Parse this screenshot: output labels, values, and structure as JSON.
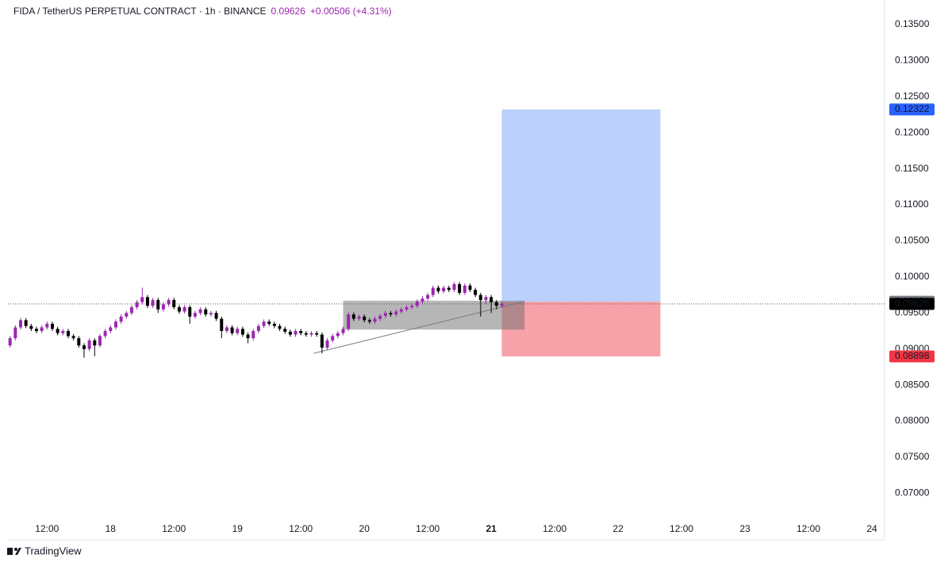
{
  "chart_data": {
    "type": "candlestick",
    "title": "FIDA / TetherUS PERPETUAL CONTRACT · 1h · BINANCE",
    "last_price": 0.09626,
    "change": "+0.00506 (+4.31%)",
    "footer": "TradingView",
    "up_color": "#9c27b0",
    "down_color": "#000000",
    "grid": false,
    "x": [
      5,
      6,
      7,
      8,
      9,
      10,
      11,
      12,
      13,
      14,
      15,
      16,
      17,
      18,
      19,
      20,
      21,
      22,
      23,
      24,
      25,
      26,
      27,
      28,
      29,
      30,
      31,
      32,
      33,
      34,
      35,
      36,
      37,
      38,
      39,
      40,
      41,
      42,
      43,
      44,
      45,
      46,
      47,
      48,
      49,
      50,
      51,
      52,
      53,
      54,
      55,
      56,
      57,
      58,
      59,
      60,
      61,
      62,
      63,
      64,
      65,
      66,
      67,
      68,
      69,
      70,
      71,
      72,
      73,
      74,
      75,
      76,
      77,
      78,
      79,
      80,
      81,
      82,
      83,
      84,
      85,
      86,
      87,
      88,
      89,
      90,
      91,
      92,
      93,
      94,
      95,
      96,
      97,
      98
    ],
    "open": [
      0.0905,
      0.0915,
      0.093,
      0.094,
      0.0932,
      0.0928,
      0.0925,
      0.093,
      0.0935,
      0.0928,
      0.0922,
      0.0925,
      0.0918,
      0.0915,
      0.0905,
      0.09,
      0.0912,
      0.0905,
      0.0918,
      0.0925,
      0.093,
      0.0938,
      0.0945,
      0.095,
      0.0958,
      0.0965,
      0.0972,
      0.096,
      0.0968,
      0.0955,
      0.0962,
      0.0968,
      0.0958,
      0.0952,
      0.0958,
      0.0945,
      0.095,
      0.0955,
      0.0948,
      0.095,
      0.0942,
      0.0925,
      0.093,
      0.0922,
      0.0928,
      0.092,
      0.0915,
      0.0925,
      0.0932,
      0.0938,
      0.0935,
      0.0932,
      0.0928,
      0.0924,
      0.092,
      0.0925,
      0.0922,
      0.092,
      0.0922,
      0.092,
      0.0902,
      0.0912,
      0.0918,
      0.0922,
      0.0928,
      0.0948,
      0.0942,
      0.0945,
      0.094,
      0.0938,
      0.0942,
      0.0946,
      0.095,
      0.0948,
      0.0952,
      0.0955,
      0.0958,
      0.096,
      0.0966,
      0.097,
      0.0975,
      0.0985,
      0.098,
      0.0985,
      0.0982,
      0.099,
      0.0978,
      0.0988,
      0.0982,
      0.0975,
      0.0968,
      0.0972,
      0.0965,
      0.096
    ],
    "high": [
      0.0918,
      0.0933,
      0.0943,
      0.0943,
      0.0935,
      0.0931,
      0.0933,
      0.0938,
      0.0938,
      0.0931,
      0.0928,
      0.0928,
      0.0921,
      0.0918,
      0.0908,
      0.0915,
      0.0915,
      0.0921,
      0.0928,
      0.0933,
      0.0941,
      0.0948,
      0.0953,
      0.0961,
      0.0968,
      0.0985,
      0.0975,
      0.0971,
      0.0971,
      0.0965,
      0.0971,
      0.0971,
      0.0961,
      0.0961,
      0.0961,
      0.0953,
      0.0958,
      0.0958,
      0.0953,
      0.0953,
      0.0945,
      0.0933,
      0.0933,
      0.0931,
      0.0931,
      0.0923,
      0.0928,
      0.0935,
      0.0941,
      0.0941,
      0.0938,
      0.0935,
      0.0931,
      0.0927,
      0.0928,
      0.0928,
      0.0925,
      0.0925,
      0.0925,
      0.0923,
      0.0915,
      0.0921,
      0.0925,
      0.0931,
      0.0951,
      0.0951,
      0.0948,
      0.0948,
      0.0943,
      0.0945,
      0.0949,
      0.0953,
      0.0953,
      0.0955,
      0.0958,
      0.0961,
      0.0963,
      0.0969,
      0.0973,
      0.0978,
      0.0988,
      0.0988,
      0.0988,
      0.0988,
      0.0993,
      0.0993,
      0.0991,
      0.0991,
      0.0985,
      0.0978,
      0.0975,
      0.0975,
      0.0968,
      0.0966
    ],
    "low": [
      0.0902,
      0.0912,
      0.0927,
      0.0929,
      0.0925,
      0.0922,
      0.0922,
      0.0927,
      0.0925,
      0.0919,
      0.0919,
      0.0915,
      0.0912,
      0.0902,
      0.0888,
      0.0897,
      0.089,
      0.0902,
      0.0915,
      0.0922,
      0.0927,
      0.0935,
      0.0942,
      0.0947,
      0.0955,
      0.0962,
      0.0957,
      0.0957,
      0.095,
      0.0952,
      0.0959,
      0.0955,
      0.0949,
      0.0949,
      0.0935,
      0.0942,
      0.0947,
      0.0945,
      0.0945,
      0.0939,
      0.0915,
      0.0922,
      0.0919,
      0.0919,
      0.0917,
      0.0908,
      0.0912,
      0.0922,
      0.0929,
      0.0932,
      0.0929,
      0.0925,
      0.0921,
      0.0917,
      0.0917,
      0.0919,
      0.0917,
      0.0917,
      0.0917,
      0.0894,
      0.0899,
      0.0909,
      0.0915,
      0.0919,
      0.0925,
      0.0939,
      0.0939,
      0.0937,
      0.0935,
      0.0935,
      0.0939,
      0.0943,
      0.0945,
      0.0945,
      0.0949,
      0.0952,
      0.0955,
      0.0957,
      0.0963,
      0.0967,
      0.0972,
      0.0977,
      0.0977,
      0.0979,
      0.0979,
      0.0975,
      0.0975,
      0.0979,
      0.0972,
      0.0945,
      0.0962,
      0.095,
      0.0955,
      0.0957
    ],
    "close": [
      0.0915,
      0.093,
      0.094,
      0.0932,
      0.0928,
      0.0925,
      0.093,
      0.0935,
      0.0928,
      0.0922,
      0.0925,
      0.0918,
      0.0915,
      0.0905,
      0.09,
      0.0912,
      0.0905,
      0.0918,
      0.0925,
      0.093,
      0.0938,
      0.0945,
      0.095,
      0.0958,
      0.0965,
      0.0972,
      0.096,
      0.0968,
      0.0955,
      0.0962,
      0.0968,
      0.0958,
      0.0952,
      0.0958,
      0.0945,
      0.095,
      0.0955,
      0.0948,
      0.095,
      0.0942,
      0.0925,
      0.093,
      0.0922,
      0.0928,
      0.092,
      0.0915,
      0.0925,
      0.0932,
      0.0938,
      0.0935,
      0.0932,
      0.0928,
      0.0924,
      0.092,
      0.0925,
      0.0922,
      0.092,
      0.0922,
      0.092,
      0.0902,
      0.0912,
      0.0918,
      0.0922,
      0.0928,
      0.0948,
      0.0942,
      0.0945,
      0.094,
      0.0938,
      0.0942,
      0.0946,
      0.095,
      0.0948,
      0.0952,
      0.0955,
      0.0958,
      0.096,
      0.0966,
      0.097,
      0.0975,
      0.0985,
      0.098,
      0.0985,
      0.0982,
      0.099,
      0.0978,
      0.0988,
      0.0982,
      0.0975,
      0.0968,
      0.0972,
      0.0965,
      0.096,
      0.09626
    ],
    "xlim": [
      4.6,
      170.4
    ],
    "ylim": [
      0.0663,
      0.1384
    ],
    "xticks": [
      {
        "value": 12,
        "label": "12:00"
      },
      {
        "value": 24,
        "label": "18"
      },
      {
        "value": 36,
        "label": "12:00"
      },
      {
        "value": 48,
        "label": "19"
      },
      {
        "value": 60,
        "label": "12:00"
      },
      {
        "value": 72,
        "label": "20"
      },
      {
        "value": 84,
        "label": "12:00"
      },
      {
        "value": 96,
        "label": "21"
      },
      {
        "value": 108,
        "label": "12:00"
      },
      {
        "value": 120,
        "label": "22"
      },
      {
        "value": 132,
        "label": "12:00"
      },
      {
        "value": 144,
        "label": "23"
      },
      {
        "value": 156,
        "label": "12:00"
      },
      {
        "value": 168,
        "label": "24"
      }
    ],
    "yticks": [
      {
        "value": 0.07,
        "label": "0.07000"
      },
      {
        "value": 0.075,
        "label": "0.07500"
      },
      {
        "value": 0.08,
        "label": "0.08000"
      },
      {
        "value": 0.085,
        "label": "0.08500"
      },
      {
        "value": 0.09,
        "label": "0.09000"
      },
      {
        "value": 0.095,
        "label": "0.09500"
      },
      {
        "value": 0.1,
        "label": "0.10000"
      },
      {
        "value": 0.105,
        "label": "0.10500"
      },
      {
        "value": 0.11,
        "label": "0.11000"
      },
      {
        "value": 0.115,
        "label": "0.11500"
      },
      {
        "value": 0.12,
        "label": "0.12000"
      },
      {
        "value": 0.125,
        "label": "0.12500"
      },
      {
        "value": 0.13,
        "label": "0.13000"
      },
      {
        "value": 0.135,
        "label": "0.13500"
      }
    ],
    "position": {
      "target": 0.12322,
      "entry": 0.09656,
      "stop": 0.08898,
      "x": [
        98,
        128
      ]
    },
    "zone": {
      "x": [
        68,
        102.3
      ],
      "y": [
        0.0927,
        0.0967
      ]
    },
    "trendline": {
      "x": [
        62.4,
        102.3
      ],
      "y": [
        0.0894,
        0.0966
      ]
    }
  }
}
